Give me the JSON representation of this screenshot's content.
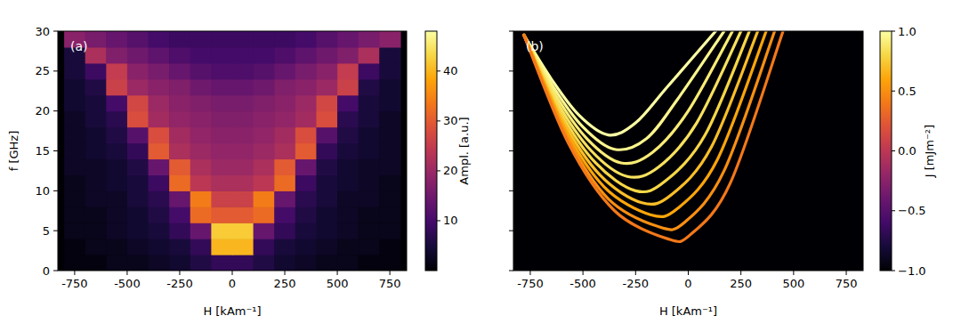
{
  "chart_data": [
    {
      "type": "heatmap",
      "panel_label": "(a)",
      "x_label": "H [kAm⁻¹]",
      "y_label": "f [GHz]",
      "xlim": [
        -830,
        830
      ],
      "ylim": [
        0,
        30
      ],
      "xticks": [
        -750,
        -500,
        -250,
        0,
        250,
        500,
        750
      ],
      "yticks": [
        0,
        5,
        10,
        15,
        20,
        25,
        30
      ],
      "x": [
        -750,
        -650,
        -550,
        -450,
        -350,
        -250,
        -150,
        -50,
        50,
        150,
        250,
        350,
        450,
        550,
        650,
        750
      ],
      "y": [
        1,
        3,
        5,
        7,
        9,
        11,
        13,
        15,
        17,
        19,
        21,
        23,
        25,
        27,
        29
      ],
      "values": [
        [
          1,
          1,
          2,
          2,
          3,
          4,
          6,
          8,
          8,
          6,
          4,
          3,
          2,
          2,
          1,
          1
        ],
        [
          1,
          2,
          2,
          3,
          4,
          5,
          8,
          40,
          40,
          8,
          5,
          4,
          3,
          2,
          2,
          1
        ],
        [
          2,
          2,
          3,
          4,
          5,
          8,
          14,
          42,
          42,
          14,
          8,
          5,
          4,
          3,
          2,
          2
        ],
        [
          2,
          2,
          3,
          4,
          6,
          10,
          32,
          30,
          30,
          32,
          10,
          6,
          4,
          3,
          2,
          2
        ],
        [
          2,
          3,
          3,
          5,
          7,
          14,
          34,
          26,
          26,
          34,
          14,
          7,
          5,
          3,
          3,
          2
        ],
        [
          2,
          3,
          4,
          5,
          9,
          32,
          24,
          22,
          22,
          24,
          32,
          9,
          5,
          4,
          3,
          2
        ],
        [
          3,
          3,
          4,
          6,
          14,
          30,
          22,
          20,
          20,
          22,
          30,
          14,
          6,
          4,
          3,
          3
        ],
        [
          3,
          4,
          5,
          8,
          30,
          22,
          20,
          19,
          19,
          20,
          22,
          30,
          8,
          5,
          4,
          3
        ],
        [
          3,
          4,
          6,
          12,
          28,
          21,
          19,
          18,
          18,
          19,
          21,
          28,
          12,
          6,
          4,
          3
        ],
        [
          3,
          5,
          7,
          28,
          21,
          19,
          18,
          17,
          17,
          18,
          19,
          21,
          28,
          7,
          5,
          3
        ],
        [
          4,
          5,
          10,
          27,
          20,
          18,
          17,
          16,
          16,
          17,
          18,
          20,
          27,
          10,
          5,
          4
        ],
        [
          4,
          6,
          26,
          20,
          18,
          17,
          15,
          14,
          14,
          15,
          17,
          18,
          20,
          26,
          6,
          4
        ],
        [
          5,
          9,
          25,
          18,
          16,
          14,
          12,
          11,
          11,
          12,
          14,
          16,
          18,
          25,
          9,
          5
        ],
        [
          5,
          22,
          17,
          15,
          13,
          11,
          10,
          10,
          10,
          10,
          11,
          13,
          15,
          17,
          22,
          5
        ],
        [
          18,
          16,
          14,
          12,
          10,
          9,
          9,
          9,
          9,
          9,
          9,
          10,
          12,
          14,
          16,
          18
        ]
      ],
      "colorbar": {
        "label": "Ampl. [a.u.]",
        "range": [
          0,
          48
        ],
        "ticks": [
          10,
          20,
          30,
          40
        ]
      }
    },
    {
      "type": "line",
      "panel_label": "(b)",
      "x_label": "H [kAm⁻¹]",
      "tick_labels": "x",
      "xlim": [
        -830,
        830
      ],
      "ylim": [
        0,
        30
      ],
      "xticks": [
        -750,
        -500,
        -250,
        0,
        250,
        500,
        750
      ],
      "yticks": [
        0,
        5,
        10,
        15,
        20,
        25,
        30
      ],
      "series": [
        {
          "j": 1.0,
          "x": [
            -780,
            -650,
            -520,
            -380,
            -250,
            -100,
            130
          ],
          "y": [
            29.5,
            24,
            19.5,
            17,
            18.5,
            23,
            30
          ]
        },
        {
          "j": 0.95,
          "x": [
            -780,
            -640,
            -500,
            -350,
            -200,
            -50,
            170
          ],
          "y": [
            29.5,
            23,
            18,
            15.2,
            16.5,
            21.5,
            30
          ]
        },
        {
          "j": 0.9,
          "x": [
            -780,
            -630,
            -480,
            -320,
            -170,
            0,
            210
          ],
          "y": [
            29.5,
            22,
            16.5,
            13.5,
            14.8,
            20,
            30
          ]
        },
        {
          "j": 0.85,
          "x": [
            -780,
            -620,
            -460,
            -290,
            -140,
            40,
            250
          ],
          "y": [
            29.5,
            21,
            15,
            11.8,
            13,
            18.5,
            30
          ]
        },
        {
          "j": 0.8,
          "x": [
            -780,
            -610,
            -440,
            -250,
            -110,
            80,
            290
          ],
          "y": [
            29.5,
            20,
            13.5,
            10,
            11.2,
            17,
            30
          ]
        },
        {
          "j": 0.7,
          "x": [
            -780,
            -600,
            -420,
            -220,
            -80,
            110,
            330
          ],
          "y": [
            29.5,
            19,
            12,
            8.5,
            9.5,
            15.5,
            30
          ]
        },
        {
          "j": 0.6,
          "x": [
            -780,
            -590,
            -400,
            -180,
            -50,
            140,
            370
          ],
          "y": [
            29.5,
            18,
            10.5,
            7,
            7.8,
            14,
            30
          ]
        },
        {
          "j": 0.5,
          "x": [
            -780,
            -580,
            -380,
            -140,
            -20,
            170,
            410
          ],
          "y": [
            29.5,
            17,
            9,
            5.5,
            6,
            12.5,
            30
          ]
        },
        {
          "j": 0.4,
          "x": [
            -780,
            -570,
            -350,
            -100,
            10,
            200,
            450
          ],
          "y": [
            29.5,
            16,
            7.5,
            4,
            4.5,
            11,
            30
          ]
        }
      ],
      "colorbar": {
        "label": "J [mJm⁻²]",
        "range": [
          -1.0,
          1.0
        ],
        "ticks": [
          {
            "value": -1.0,
            "label": "−1.0"
          },
          {
            "value": -0.5,
            "label": "−0.5"
          },
          {
            "value": 0,
            "label": "0.0"
          },
          {
            "value": 0.5,
            "label": "0.5"
          },
          {
            "value": 1.0,
            "label": "1.0"
          }
        ]
      }
    }
  ]
}
